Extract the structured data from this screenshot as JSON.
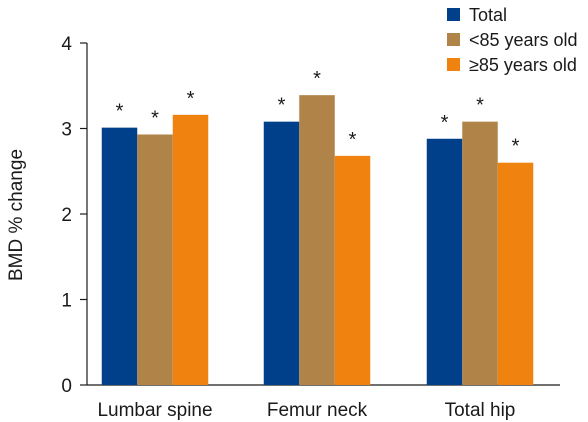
{
  "chart_data": {
    "type": "bar",
    "title": "",
    "xlabel": "",
    "ylabel": "BMD % change",
    "ylim": [
      0,
      4
    ],
    "yticks": [
      "0",
      "1",
      "2",
      "3",
      "4"
    ],
    "grid": false,
    "legend_position": "top-right",
    "categories": [
      "Lumbar spine",
      "Femur neck",
      "Total hip"
    ],
    "series": [
      {
        "name": "Total",
        "color": "#003f8a",
        "values": [
          3.01,
          3.08,
          2.88
        ],
        "annotations": [
          "*",
          "*",
          "*"
        ]
      },
      {
        "name": "<85 years old",
        "color": "#b08449",
        "values": [
          2.93,
          3.39,
          3.08
        ],
        "annotations": [
          "*",
          "*",
          "*"
        ]
      },
      {
        "name": "≥85 years old",
        "color": "#f0820f",
        "values": [
          3.16,
          2.68,
          2.6
        ],
        "annotations": [
          "*",
          "*",
          "*"
        ]
      }
    ]
  }
}
